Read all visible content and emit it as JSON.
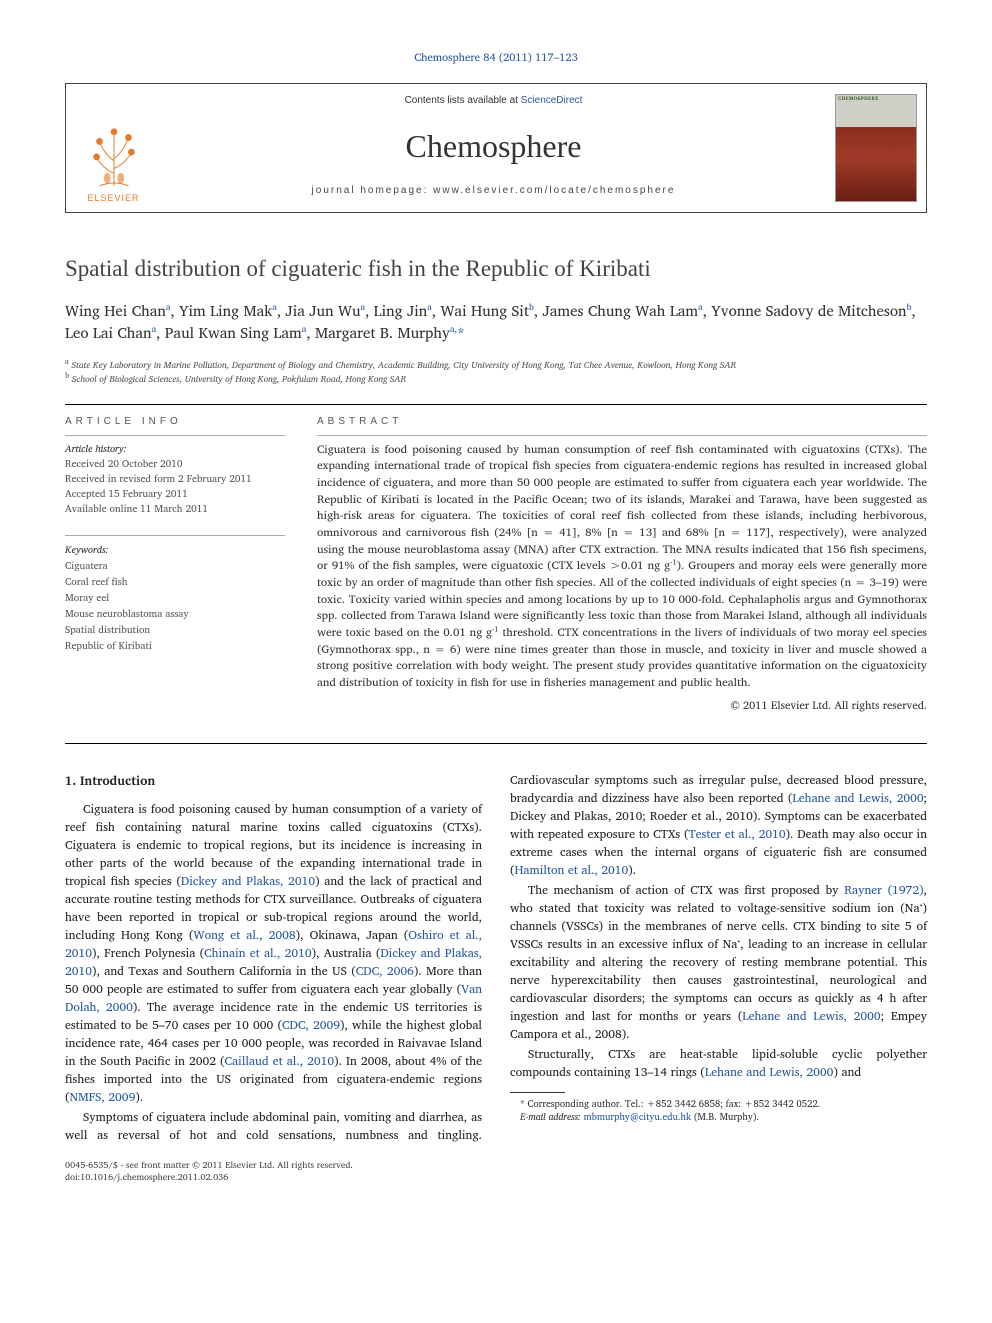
{
  "journal_ref": {
    "prefix": "Chemosphere 84 (2011) 117–123",
    "link_text": "Chemosphere 84 (2011) 117–123"
  },
  "masthead": {
    "contents_prefix": "Contents lists available at ",
    "contents_link": "ScienceDirect",
    "journal_title": "Chemosphere",
    "homepage_label": "journal homepage: www.elsevier.com/locate/chemosphere",
    "elsevier_label": "ELSEVIER",
    "cover_label": "CHEMOSPHERE"
  },
  "article": {
    "title": "Spatial distribution of ciguateric fish in the Republic of Kiribati",
    "authors_html": "Wing Hei Chan<sup>a</sup>, Yim Ling Mak<sup>a</sup>, Jia Jun Wu<sup>a</sup>, Ling Jin<sup>a</sup>, Wai Hung Sit<sup>b</sup>, James Chung Wah Lam<sup>a</sup>, Yvonne Sadovy de Mitcheson<sup>b</sup>, Leo Lai Chan<sup>a</sup>, Paul Kwan Sing Lam<sup>a</sup>, Margaret B. Murphy<sup>a,</sup><span class='star'>*</span>",
    "affiliations": [
      "State Key Laboratory in Marine Pollution, Department of Biology and Chemistry, Academic Building, City University of Hong Kong, Tat Chee Avenue, Kowloon, Hong Kong SAR",
      "School of Biological Sciences, University of Hong Kong, Pokfulam Road, Hong Kong SAR"
    ],
    "aff_labels": [
      "a",
      "b"
    ]
  },
  "info": {
    "heading": "ARTICLE INFO",
    "history_label": "Article history:",
    "history": [
      "Received 20 October 2010",
      "Received in revised form 2 February 2011",
      "Accepted 15 February 2011",
      "Available online 11 March 2011"
    ],
    "keywords_label": "Keywords:",
    "keywords": [
      "Ciguatera",
      "Coral reef fish",
      "Moray eel",
      "Mouse neuroblastoma assay",
      "Spatial distribution",
      "Republic of Kiribati"
    ]
  },
  "abstract": {
    "heading": "ABSTRACT",
    "text": "Ciguatera is food poisoning caused by human consumption of reef fish contaminated with ciguatoxins (CTXs). The expanding international trade of tropical fish species from ciguatera-endemic regions has resulted in increased global incidence of ciguatera, and more than 50 000 people are estimated to suffer from ciguatera each year worldwide. The Republic of Kiribati is located in the Pacific Ocean; two of its islands, Marakei and Tarawa, have been suggested as high-risk areas for ciguatera. The toxicities of coral reef fish collected from these islands, including herbivorous, omnivorous and carnivorous fish (24% [n = 41], 8% [n = 13] and 68% [n = 117], respectively), were analyzed using the mouse neuroblastoma assay (MNA) after CTX extraction. The MNA results indicated that 156 fish specimens, or 91% of the fish samples, were ciguatoxic (CTX levels >0.01 ng g⁻¹). Groupers and moray eels were generally more toxic by an order of magnitude than other fish species. All of the collected individuals of eight species (n = 3–19) were toxic. Toxicity varied within species and among locations by up to 10 000-fold. Cephalapholis argus and Gymnothorax spp. collected from Tarawa Island were significantly less toxic than those from Marakei Island, although all individuals were toxic based on the 0.01 ng g⁻¹ threshold. CTX concentrations in the livers of individuals of two moray eel species (Gymnothorax spp., n = 6) were nine times greater than those in muscle, and toxicity in liver and muscle showed a strong positive correlation with body weight. The present study provides quantitative information on the ciguatoxicity and distribution of toxicity in fish for use in fisheries management and public health.",
    "copyright": "© 2011 Elsevier Ltd. All rights reserved."
  },
  "body": {
    "intro_heading": "1. Introduction",
    "p1_a": "Ciguatera is food poisoning caused by human consumption of a variety of reef fish containing natural marine toxins called ciguatoxins (CTXs). Ciguatera is endemic to tropical regions, but its incidence is increasing in other parts of the world because of the expanding international trade in tropical fish species (",
    "p1_link1": "Dickey and Plakas, 2010",
    "p1_b": ") and the lack of practical and accurate routine testing methods for CTX surveillance. Outbreaks of ciguatera have been reported in tropical or sub-tropical regions around the world, including Hong Kong (",
    "p1_link2": "Wong et al., 2008",
    "p1_c": "), Okinawa, Japan (",
    "p1_link3": "Oshiro et al., 2010",
    "p1_d": "), French Polynesia (",
    "p1_link4": "Chinain et al., 2010",
    "p1_e": "), Australia (",
    "p1_link5": "Dickey and Plakas, 2010",
    "p1_f": "), and Texas and Southern California in the US (",
    "p1_link6": "CDC, 2006",
    "p1_g": "). More than 50 000 people are estimated to suffer from ciguatera each year globally (",
    "p1_link7": "Van Dolah, 2000",
    "p1_h": "). The average incidence rate in the endemic US territories is estimated to be 5–70 cases per 10 000 (",
    "p1_link8": "CDC, 2009",
    "p1_i": "), while the highest global incidence rate, 464 cases per 10 000 people, was recorded in Raivavae Island in the South Pacific in 2002 (",
    "p1_link9": "Caillaud et al., 2010",
    "p1_j": "). In 2008, about 4% of the fishes imported into the US originated from ciguatera-endemic regions (",
    "p1_link10": "NMFS, 2009",
    "p1_k": ").",
    "p2_a": "Symptoms of ciguatera include abdominal pain, vomiting and diarrhea, as well as reversal of hot and cold sensations, numbness and tingling. Cardiovascular symptoms such as irregular pulse, decreased blood pressure, bradycardia and dizziness have also been reported (",
    "p2_link1": "Lehane and Lewis, 2000",
    "p2_b": "; Dickey and Plakas, 2010; Roeder et al., 2010). Symptoms can be exacerbated with repeated exposure to CTXs (",
    "p2_link2": "Tester et al., 2010",
    "p2_c": "). Death may also occur in extreme cases when the internal organs of ciguateric fish are consumed (",
    "p2_link3": "Hamilton et al., 2010",
    "p2_d": ").",
    "p3_a": "The mechanism of action of CTX was first proposed by ",
    "p3_link1": "Rayner (1972)",
    "p3_b": ", who stated that toxicity was related to voltage-sensitive sodium ion (Na⁺) channels (VSSCs) in the membranes of nerve cells. CTX binding to site 5 of VSSCs results in an excessive influx of Na⁺, leading to an increase in cellular excitability and altering the recovery of resting membrane potential. This nerve hyperexcitability then causes gastrointestinal, neurological and cardiovascular disorders; the symptoms can occurs as quickly as 4 h after ingestion and last for months or years (",
    "p3_link2": "Lehane and Lewis, 2000",
    "p3_c": "; Empey Campora et al., 2008).",
    "p4_a": "Structurally, CTXs are heat-stable lipid-soluble cyclic polyether compounds containing 13–14 rings (",
    "p4_link1": "Lehane and Lewis, 2000",
    "p4_b": ") and"
  },
  "footnote": {
    "corr_prefix": "* Corresponding author. Tel.: +852 3442 6858; fax: +852 3442 0522.",
    "email_label": "E-mail address:",
    "email": "mbmurphy@cityu.edu.hk",
    "email_suffix": "(M.B. Murphy)."
  },
  "bottom": {
    "line1": "0045-6535/$ - see front matter © 2011 Elsevier Ltd. All rights reserved.",
    "line2": "doi:10.1016/j.chemosphere.2011.02.036"
  },
  "colors": {
    "link": "#2757a0",
    "elsevier_orange": "#e47b2c",
    "text_body": "#222222",
    "text_muted": "#555555"
  }
}
